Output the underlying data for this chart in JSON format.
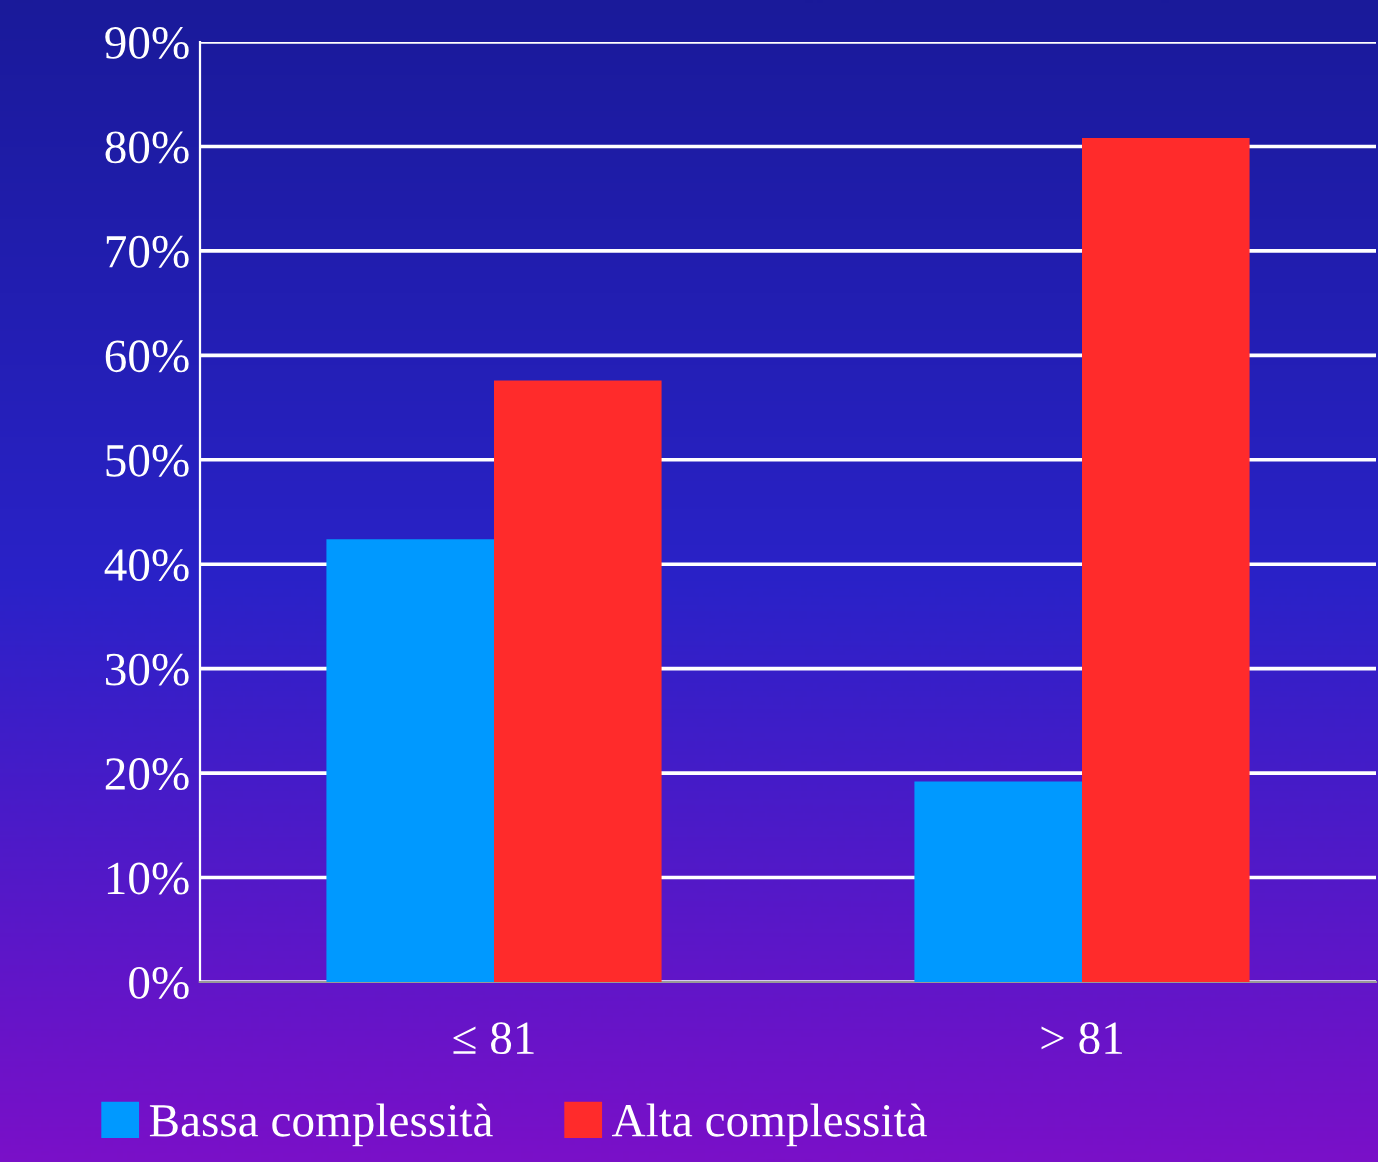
{
  "chart_data": {
    "type": "bar",
    "categories": [
      "≤ 81",
      "> 81"
    ],
    "series": [
      {
        "name": "Bassa complessità",
        "color": "#0099ff",
        "values": [
          42.4,
          19.2
        ]
      },
      {
        "name": "Alta complessità",
        "color": "#ff2b2b",
        "values": [
          57.6,
          80.8
        ]
      }
    ],
    "ylim": [
      0,
      90
    ],
    "yticks": [
      {
        "value": 0,
        "label": "0%"
      },
      {
        "value": 10,
        "label": "10%"
      },
      {
        "value": 20,
        "label": "20%"
      },
      {
        "value": 30,
        "label": "30%"
      },
      {
        "value": 40,
        "label": "40%"
      },
      {
        "value": 50,
        "label": "50%"
      },
      {
        "value": 60,
        "label": "60%"
      },
      {
        "value": 70,
        "label": "70%"
      },
      {
        "value": 80,
        "label": "80%"
      },
      {
        "value": 90,
        "label": "90%"
      }
    ],
    "grid": "y",
    "legend": "bottom"
  }
}
